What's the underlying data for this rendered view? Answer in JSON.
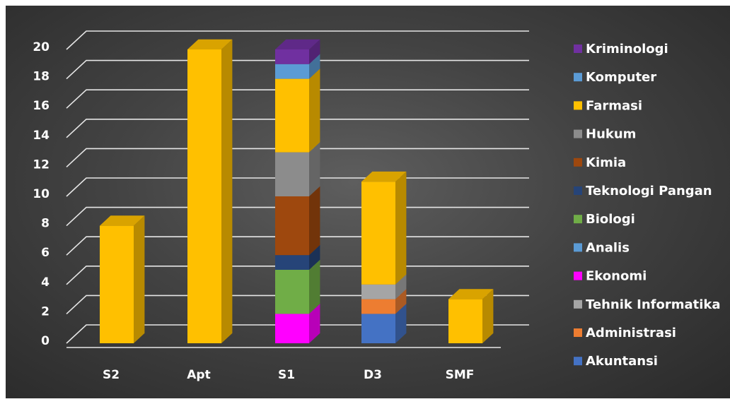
{
  "chart_data": {
    "type": "bar",
    "stacked": true,
    "view": "3d-columns",
    "categories": [
      "S2",
      "Apt",
      "S1",
      "D3",
      "SMF"
    ],
    "ylim": [
      0,
      20
    ],
    "yticks": [
      "0",
      "2",
      "4",
      "6",
      "8",
      "10",
      "12",
      "14",
      "16",
      "18",
      "20"
    ],
    "grid": true,
    "legend_position": "right",
    "series": [
      {
        "name": "Akuntansi",
        "color": "#4472C4",
        "values": [
          0,
          0,
          0,
          2,
          0
        ]
      },
      {
        "name": "Administrasi",
        "color": "#ED7D31",
        "values": [
          0,
          0,
          0,
          1,
          0
        ]
      },
      {
        "name": "Tehnik Informatika",
        "color": "#A5A5A5",
        "values": [
          0,
          0,
          0,
          1,
          0
        ]
      },
      {
        "name": "Ekonomi",
        "color": "#FF00FF",
        "values": [
          0,
          0,
          2,
          0,
          0
        ]
      },
      {
        "name": "Analis",
        "color": "#5B9BD5",
        "values": [
          0,
          0,
          0,
          0,
          0
        ]
      },
      {
        "name": "Biologi",
        "color": "#70AD47",
        "values": [
          0,
          0,
          3,
          0,
          0
        ]
      },
      {
        "name": "Teknologi Pangan",
        "color": "#264478",
        "values": [
          0,
          0,
          1,
          0,
          0
        ]
      },
      {
        "name": "Kimia",
        "color": "#9E480E",
        "values": [
          0,
          0,
          4,
          0,
          0
        ]
      },
      {
        "name": "Hukum",
        "color": "#8C8C8C",
        "values": [
          0,
          0,
          3,
          0,
          0
        ]
      },
      {
        "name": "Farmasi",
        "color": "#FFC000",
        "values": [
          8,
          20,
          5,
          7,
          3
        ]
      },
      {
        "name": "Komputer",
        "color": "#5B9BD5",
        "values": [
          0,
          0,
          1,
          0,
          0
        ]
      },
      {
        "name": "Kriminologi",
        "color": "#7030A0",
        "values": [
          0,
          0,
          1,
          0,
          0
        ]
      }
    ],
    "legend_order": [
      "Kriminologi",
      "Komputer",
      "Farmasi",
      "Hukum",
      "Kimia",
      "Teknologi Pangan",
      "Biologi",
      "Analis",
      "Ekonomi",
      "Tehnik Informatika",
      "Administrasi",
      "Akuntansi"
    ]
  }
}
